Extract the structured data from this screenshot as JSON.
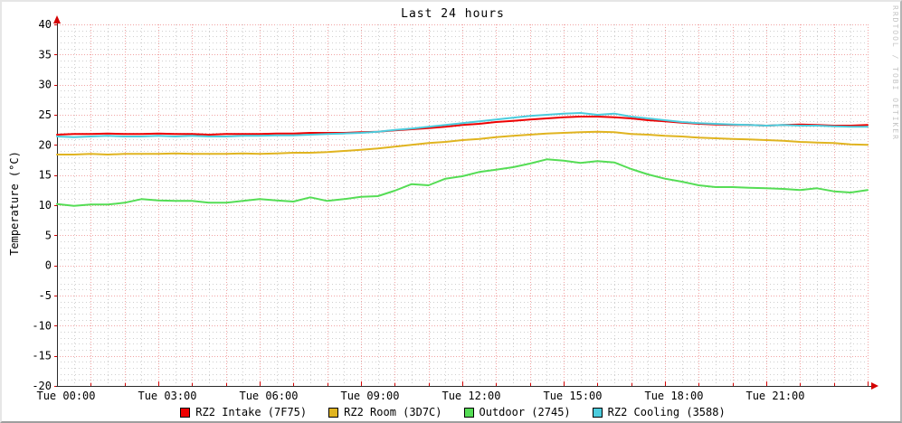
{
  "title": "Last 24 hours",
  "watermark": "RRDTOOL / TOBI OETIKER",
  "y_axis": {
    "label": "Temperature (°C)",
    "tick_values": [
      40,
      35,
      30,
      25,
      20,
      15,
      10,
      5,
      0,
      -5,
      -10,
      -15,
      -20
    ],
    "tick_labels": [
      "40",
      "35",
      "30",
      "25",
      "20",
      "15",
      "10",
      "5",
      "0",
      "-5",
      "-10",
      "-15",
      "-20"
    ]
  },
  "x_axis": {
    "tick_hours": [
      0,
      3,
      6,
      9,
      12,
      15,
      18,
      21
    ],
    "tick_labels": [
      "Tue 00:00",
      "Tue 03:00",
      "Tue 06:00",
      "Tue 09:00",
      "Tue 12:00",
      "Tue 15:00",
      "Tue 18:00",
      "Tue 21:00"
    ]
  },
  "colors": {
    "background": "#ffffff",
    "grid_major": "#f2a4a4",
    "grid_minor": "#cfcfcf",
    "axis": "#2a2a2a",
    "arrow": "#d40000",
    "tick": "#d40000",
    "text": "#000000",
    "watermark": "#c4c4c4"
  },
  "chart_data": {
    "type": "line",
    "title": "Last 24 hours",
    "xlabel": "",
    "ylabel": "Temperature (°C)",
    "xlim": [
      0,
      24
    ],
    "ylim": [
      -20,
      40
    ],
    "grid": true,
    "legend_position": "bottom",
    "x_unit": "hours since Tue 00:00",
    "x": [
      0,
      0.5,
      1,
      1.5,
      2,
      2.5,
      3,
      3.5,
      4,
      4.5,
      5,
      5.5,
      6,
      6.5,
      7,
      7.5,
      8,
      8.5,
      9,
      9.5,
      10,
      10.5,
      11,
      11.5,
      12,
      12.5,
      13,
      13.5,
      14,
      14.5,
      15,
      15.5,
      16,
      16.5,
      17,
      17.5,
      18,
      18.5,
      19,
      19.5,
      20,
      20.5,
      21,
      21.5,
      22,
      22.5,
      23,
      23.5,
      24
    ],
    "series": [
      {
        "name": "RZ2 Intake (7F75)",
        "color": "#ee0000",
        "values": [
          21.7,
          21.8,
          21.8,
          21.9,
          21.8,
          21.8,
          21.9,
          21.8,
          21.8,
          21.7,
          21.8,
          21.8,
          21.8,
          21.9,
          21.9,
          22.0,
          22.0,
          22.0,
          22.1,
          22.2,
          22.4,
          22.6,
          22.8,
          23.0,
          23.3,
          23.5,
          23.8,
          24.0,
          24.2,
          24.4,
          24.6,
          24.7,
          24.7,
          24.6,
          24.4,
          24.1,
          23.9,
          23.7,
          23.5,
          23.4,
          23.3,
          23.3,
          23.2,
          23.3,
          23.4,
          23.3,
          23.2,
          23.2,
          23.3
        ]
      },
      {
        "name": "RZ2 Room (3D7C)",
        "color": "#e0b420",
        "values": [
          18.4,
          18.4,
          18.5,
          18.4,
          18.5,
          18.5,
          18.5,
          18.6,
          18.5,
          18.5,
          18.5,
          18.6,
          18.5,
          18.6,
          18.7,
          18.7,
          18.8,
          19.0,
          19.2,
          19.4,
          19.7,
          20.0,
          20.3,
          20.5,
          20.8,
          21.0,
          21.3,
          21.5,
          21.7,
          21.9,
          22.0,
          22.1,
          22.2,
          22.1,
          21.8,
          21.7,
          21.5,
          21.4,
          21.2,
          21.1,
          21.0,
          20.9,
          20.8,
          20.7,
          20.5,
          20.4,
          20.3,
          20.1,
          20.0
        ]
      },
      {
        "name": "Outdoor (2745)",
        "color": "#55dd55",
        "values": [
          10.2,
          9.9,
          10.1,
          10.1,
          10.4,
          11.0,
          10.8,
          10.7,
          10.7,
          10.4,
          10.4,
          10.7,
          11.0,
          10.8,
          10.6,
          11.3,
          10.7,
          11.0,
          11.4,
          11.5,
          12.4,
          13.5,
          13.3,
          14.4,
          14.8,
          15.5,
          15.9,
          16.3,
          16.9,
          17.6,
          17.4,
          17.0,
          17.3,
          17.1,
          16.0,
          15.1,
          14.4,
          13.9,
          13.3,
          13.0,
          13.0,
          12.9,
          12.8,
          12.7,
          12.5,
          12.8,
          12.3,
          12.1,
          12.5
        ]
      },
      {
        "name": "RZ2 Cooling (3588)",
        "color": "#4cccdd",
        "values": [
          21.4,
          21.3,
          21.4,
          21.5,
          21.4,
          21.4,
          21.5,
          21.4,
          21.5,
          21.4,
          21.4,
          21.5,
          21.5,
          21.6,
          21.6,
          21.7,
          21.8,
          21.9,
          22.0,
          22.2,
          22.5,
          22.7,
          23.0,
          23.3,
          23.6,
          23.9,
          24.2,
          24.5,
          24.8,
          25.0,
          25.2,
          25.3,
          25.0,
          25.2,
          24.7,
          24.4,
          24.1,
          23.8,
          23.6,
          23.5,
          23.4,
          23.3,
          23.2,
          23.3,
          23.2,
          23.2,
          23.1,
          23.0,
          23.0
        ]
      }
    ]
  }
}
